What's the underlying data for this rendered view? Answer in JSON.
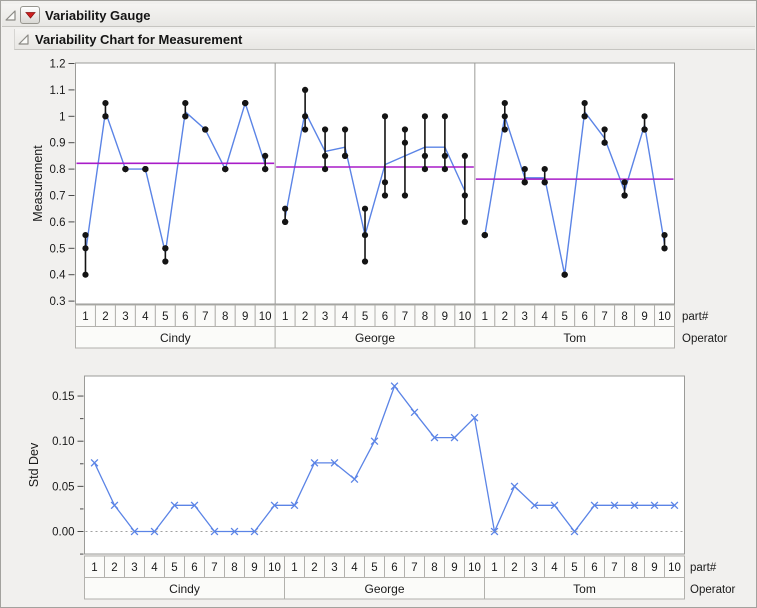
{
  "headers": {
    "outline1": "Variability Gauge",
    "outline2": "Variability Chart for Measurement"
  },
  "colors": {
    "blue": "#5b84e6",
    "purple": "#a81cc8",
    "black": "#141414",
    "text": "#1a1a1a",
    "tick": "#4a4a4a",
    "plot_border": "#9b9b98",
    "plot_bg": "#ffffff",
    "cell_border": "#b2b1ad",
    "cell_bg": "#fbfbf9",
    "zero_line": "#a0a0a0",
    "page_bg": "#f1f0ee"
  },
  "chart_data": [
    {
      "type": "line",
      "subtype": "variability-chart",
      "title": "Variability Chart for Measurement",
      "ylabel": "Measurement",
      "xlabel": "part#",
      "group_label": "Operator",
      "ylim": [
        0.29,
        1.2
      ],
      "yticks": [
        0.3,
        0.4,
        0.5,
        0.6,
        0.7,
        0.8,
        0.9,
        1.0,
        1.1,
        1.2
      ],
      "ytick_labels": [
        "0.3",
        "0.4",
        "0.5",
        "0.6",
        "0.7",
        "0.8",
        "0.9",
        "1",
        "1.1",
        "1.2"
      ],
      "categories": [
        "1",
        "2",
        "3",
        "4",
        "5",
        "6",
        "7",
        "8",
        "9",
        "10"
      ],
      "groups": [
        "Cindy",
        "George",
        "Tom"
      ],
      "grid": false,
      "legend": "none",
      "marker": "dot",
      "series": [
        {
          "name": "Cindy",
          "measurements": [
            [
              0.55,
              0.5,
              0.4
            ],
            [
              1.05,
              1.0,
              1.0
            ],
            [
              0.8,
              0.8,
              0.8
            ],
            [
              0.8,
              0.8,
              0.8
            ],
            [
              0.5,
              0.5,
              0.45
            ],
            [
              1.05,
              1.0,
              1.0
            ],
            [
              0.95,
              0.95,
              0.95
            ],
            [
              0.8,
              0.8,
              0.8
            ],
            [
              1.05,
              1.05,
              1.05
            ],
            [
              0.85,
              0.8,
              0.8
            ]
          ],
          "cell_means": [
            0.483,
            1.017,
            0.8,
            0.8,
            0.483,
            1.017,
            0.95,
            0.8,
            1.05,
            0.817
          ],
          "group_mean": 0.822
        },
        {
          "name": "George",
          "measurements": [
            [
              0.65,
              0.6,
              0.6
            ],
            [
              1.1,
              1.0,
              0.95
            ],
            [
              0.95,
              0.85,
              0.8
            ],
            [
              0.95,
              0.85,
              0.85
            ],
            [
              0.65,
              0.55,
              0.45
            ],
            [
              1.0,
              0.75,
              0.7
            ],
            [
              0.95,
              0.9,
              0.7
            ],
            [
              1.0,
              0.85,
              0.8
            ],
            [
              1.0,
              0.85,
              0.8
            ],
            [
              0.85,
              0.7,
              0.6
            ]
          ],
          "cell_means": [
            0.617,
            1.017,
            0.867,
            0.883,
            0.55,
            0.817,
            0.85,
            0.883,
            0.883,
            0.717
          ],
          "group_mean": 0.808
        },
        {
          "name": "Tom",
          "measurements": [
            [
              0.55,
              0.55,
              0.55
            ],
            [
              1.05,
              1.0,
              0.95
            ],
            [
              0.8,
              0.75,
              0.75
            ],
            [
              0.8,
              0.75,
              0.75
            ],
            [
              0.4,
              0.4,
              0.4
            ],
            [
              1.05,
              1.0,
              1.0
            ],
            [
              0.95,
              0.9,
              0.9
            ],
            [
              0.75,
              0.7,
              0.7
            ],
            [
              1.0,
              0.95,
              0.95
            ],
            [
              0.55,
              0.5,
              0.5
            ]
          ],
          "cell_means": [
            0.55,
            1.0,
            0.767,
            0.767,
            0.4,
            1.017,
            0.917,
            0.717,
            0.967,
            0.517
          ],
          "group_mean": 0.762
        }
      ]
    },
    {
      "type": "line",
      "subtype": "stddev-chart",
      "ylabel": "Std Dev",
      "xlabel": "part#",
      "group_label": "Operator",
      "ylim": [
        -0.025,
        0.172
      ],
      "yticks": [
        0.0,
        0.05,
        0.1,
        0.15
      ],
      "ytick_labels": [
        "0.00",
        "0.05",
        "0.10",
        "0.15"
      ],
      "minor_yticks": [
        -0.025,
        0.025,
        0.075,
        0.125
      ],
      "categories": [
        "1",
        "2",
        "3",
        "4",
        "5",
        "6",
        "7",
        "8",
        "9",
        "10"
      ],
      "groups": [
        "Cindy",
        "George",
        "Tom"
      ],
      "grid": false,
      "zero_line": "dotted",
      "legend": "none",
      "marker": "x",
      "series": [
        {
          "name": "Cindy",
          "values": [
            0.076,
            0.029,
            0,
            0,
            0.029,
            0.029,
            0,
            0,
            0,
            0.029
          ]
        },
        {
          "name": "George",
          "values": [
            0.029,
            0.076,
            0.076,
            0.058,
            0.1,
            0.161,
            0.132,
            0.104,
            0.104,
            0.126
          ]
        },
        {
          "name": "Tom",
          "values": [
            0,
            0.05,
            0.029,
            0.029,
            0,
            0.029,
            0.029,
            0.029,
            0.029,
            0.029
          ]
        }
      ]
    }
  ]
}
